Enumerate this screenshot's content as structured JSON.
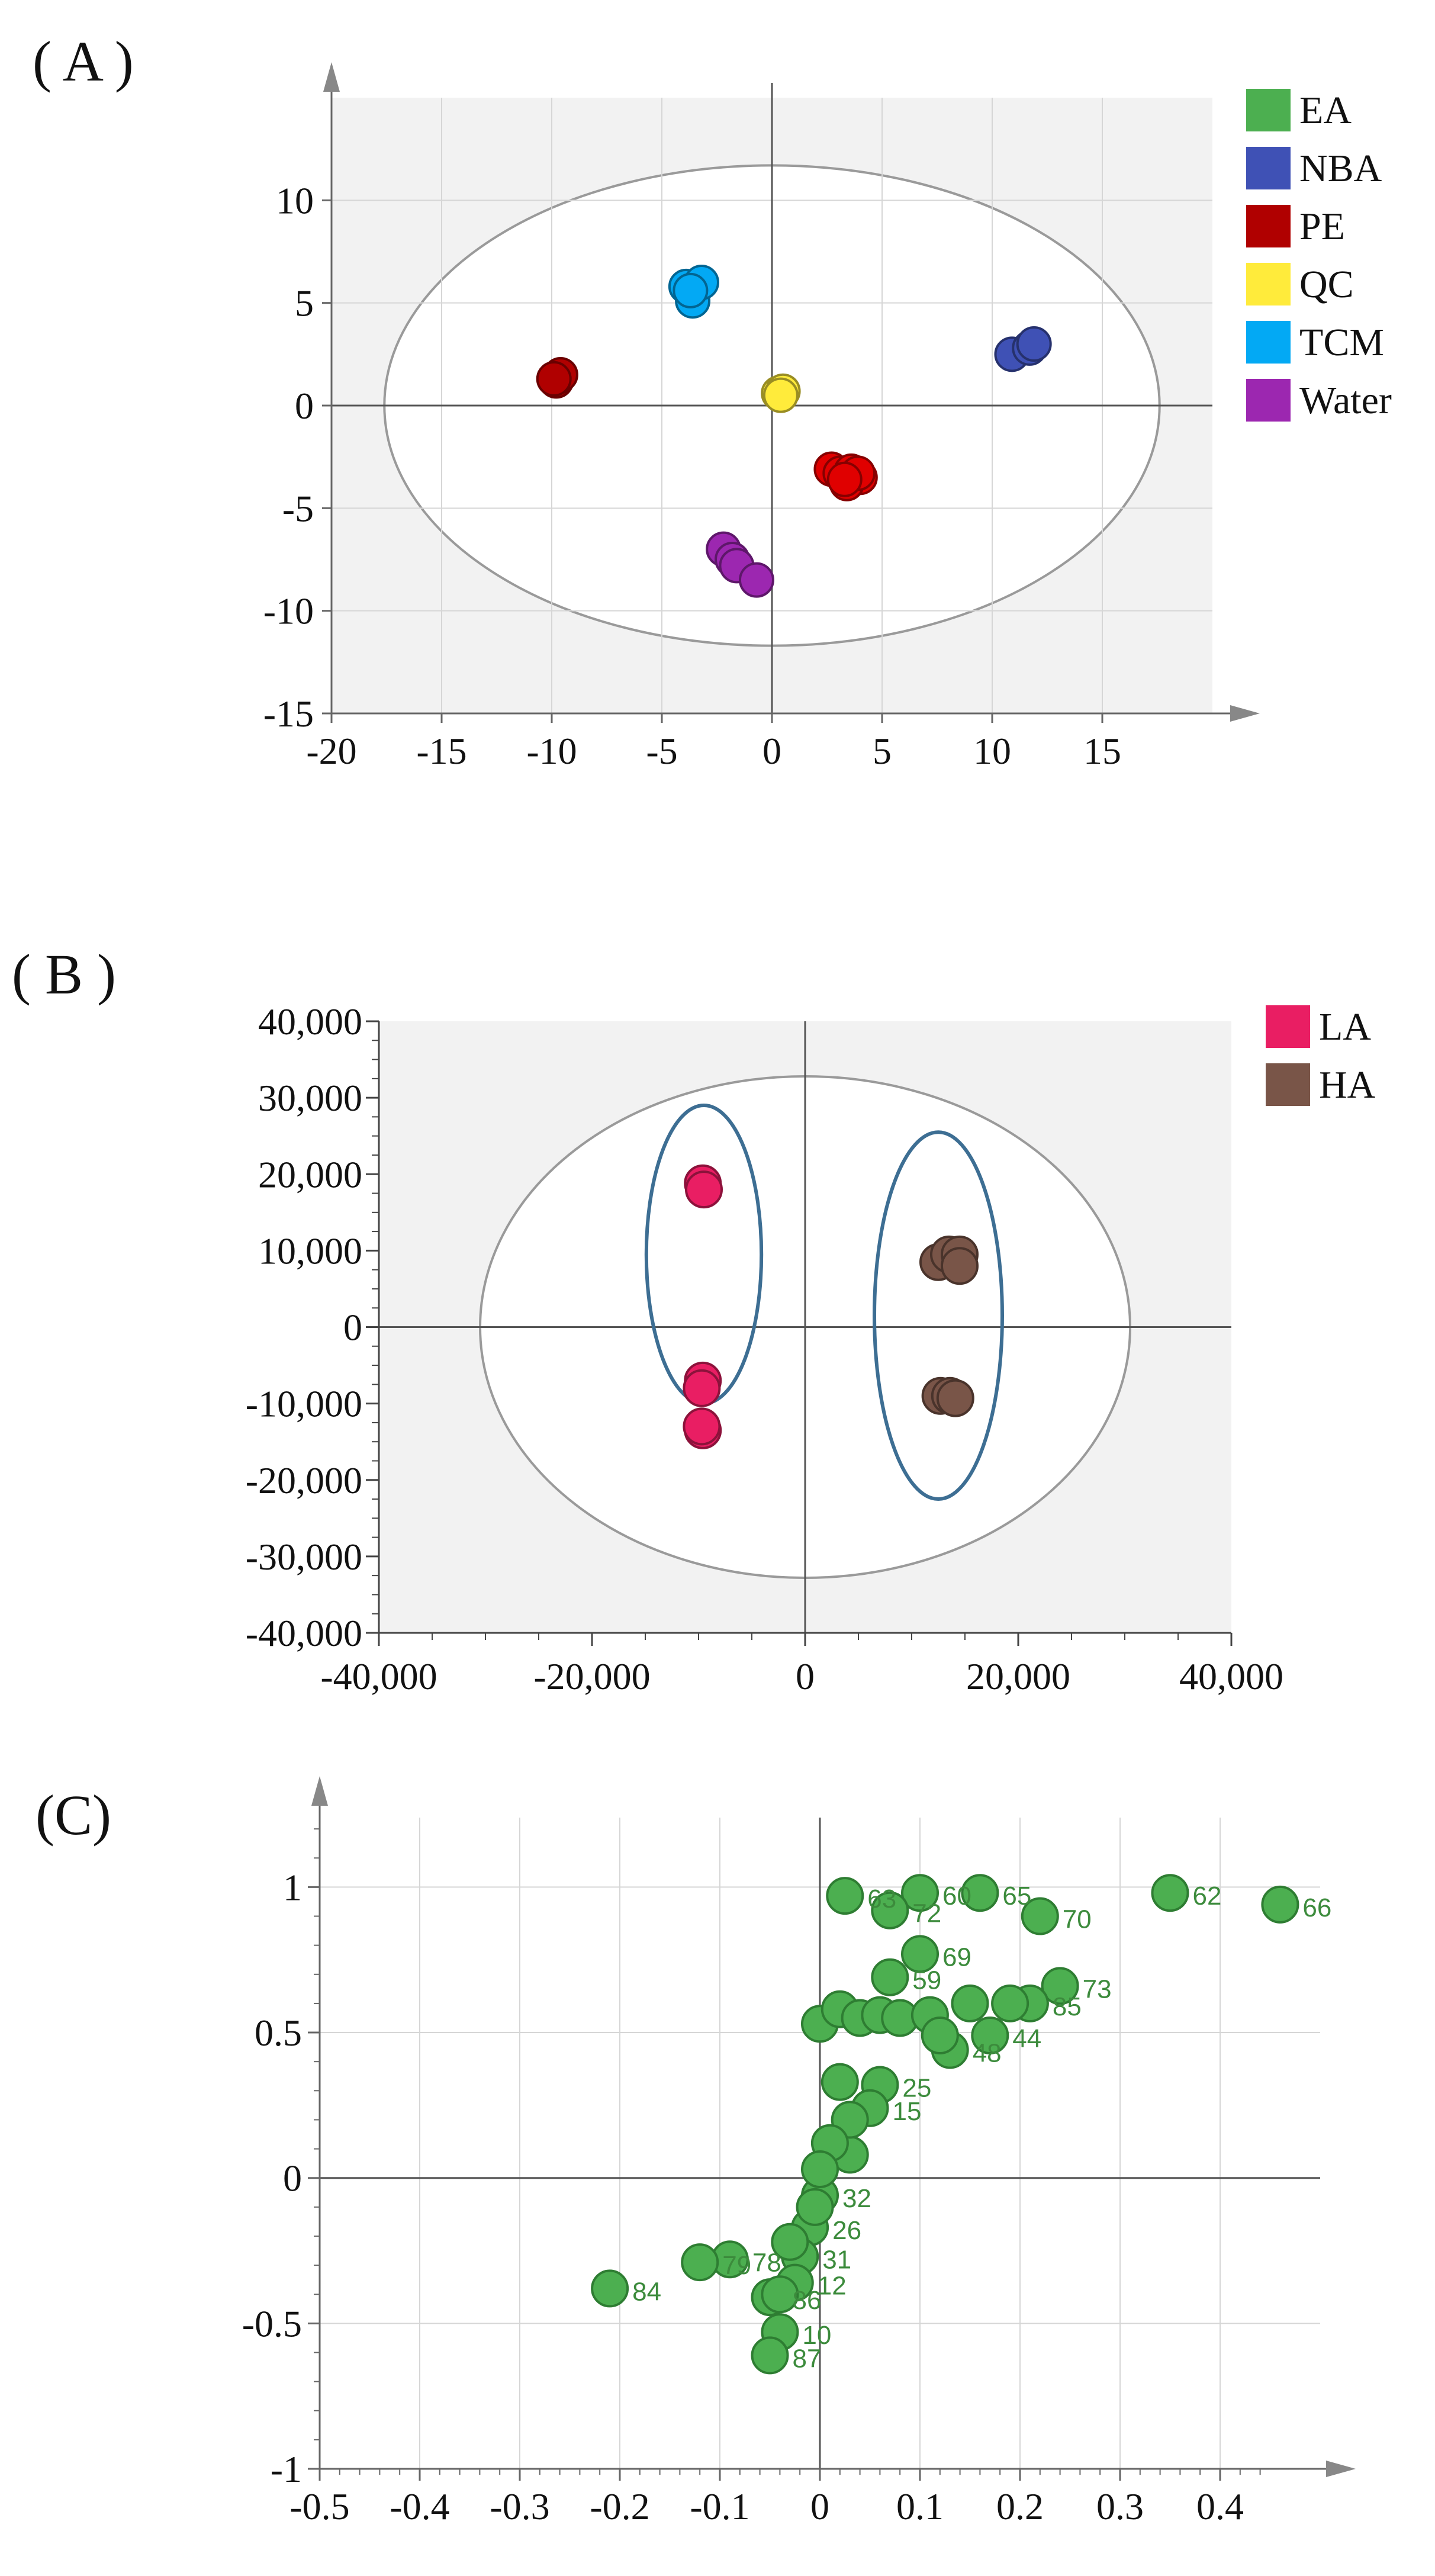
{
  "panels": {
    "a_label": "( A )",
    "b_label": "( B )",
    "c_label": "(C)"
  },
  "chart_data": [
    {
      "type": "scatter",
      "panel": "A",
      "title": "",
      "xlabel": "",
      "ylabel": "",
      "xlim": [
        -20,
        20
      ],
      "ylim": [
        -15,
        15
      ],
      "xticks": [
        "-20",
        "-15",
        "-10",
        "-5",
        "0",
        "5",
        "10",
        "15"
      ],
      "yticks": [
        "10",
        "5",
        "0",
        "-5",
        "-10",
        "-15"
      ],
      "grid": true,
      "legend_position": "right",
      "ellipse": {
        "cx": 0,
        "cy": 0,
        "rx": 17.6,
        "ry": 11.7
      },
      "series": [
        {
          "name": "EA",
          "color": "#4caf50",
          "points": []
        },
        {
          "name": "NBA",
          "color": "#3f51b5",
          "points": [
            [
              10.9,
              2.5
            ],
            [
              11.7,
              2.8
            ],
            [
              11.9,
              3.0
            ]
          ]
        },
        {
          "name": "PE",
          "color": "#b00000",
          "points": [
            [
              -9.8,
              1.2
            ],
            [
              -9.7,
              1.4
            ],
            [
              -9.6,
              1.5
            ],
            [
              -9.9,
              1.3
            ]
          ]
        },
        {
          "name": "QC",
          "color": "#ffeb3b",
          "points": [
            [
              0.3,
              0.6
            ],
            [
              0.5,
              0.7
            ],
            [
              0.4,
              0.5
            ]
          ]
        },
        {
          "name": "TCM",
          "color": "#03a9f4",
          "points": [
            [
              -3.9,
              5.8
            ],
            [
              -3.6,
              5.1
            ],
            [
              -3.2,
              6.0
            ],
            [
              -3.7,
              5.6
            ]
          ]
        },
        {
          "name": "Water",
          "color": "#9c27b0",
          "points": [
            [
              -2.2,
              -7.0
            ],
            [
              -1.8,
              -7.5
            ],
            [
              -1.6,
              -7.8
            ],
            [
              -0.7,
              -8.5
            ]
          ]
        },
        {
          "name": "",
          "color": "#e00000",
          "points": [
            [
              2.7,
              -3.1
            ],
            [
              3.1,
              -3.3
            ],
            [
              3.6,
              -3.2
            ],
            [
              4.0,
              -3.5
            ],
            [
              3.4,
              -3.8
            ],
            [
              3.9,
              -3.3
            ],
            [
              3.3,
              -3.6
            ]
          ]
        }
      ]
    },
    {
      "type": "scatter",
      "panel": "B",
      "title": "",
      "xlabel": "",
      "ylabel": "",
      "xlim": [
        -40000,
        40000
      ],
      "ylim": [
        -40000,
        40000
      ],
      "xticks": [
        "-40,000",
        "-20,000",
        "0",
        "20,000",
        "40,000"
      ],
      "yticks": [
        "40,000",
        "30,000",
        "20,000",
        "10,000",
        "0",
        "-10,000",
        "-20,000",
        "-30,000",
        "-40,000"
      ],
      "grid": false,
      "legend_position": "top-right",
      "ellipse": {
        "cx": 0,
        "cy": 0,
        "rx": 30500,
        "ry": 32800
      },
      "group_ellipses": [
        {
          "cx": -9500,
          "cy": 9500,
          "rx": 5400,
          "ry": 19500
        },
        {
          "cx": 12500,
          "cy": 1500,
          "rx": 6000,
          "ry": 24000
        }
      ],
      "series": [
        {
          "name": "LA",
          "color": "#e91e63",
          "points": [
            [
              -9600,
              18800
            ],
            [
              -9500,
              18000
            ],
            [
              -9600,
              -7000
            ],
            [
              -9700,
              -8000
            ],
            [
              -9600,
              -13500
            ],
            [
              -9700,
              -13000
            ]
          ]
        },
        {
          "name": "HA",
          "color": "#795548",
          "points": [
            [
              12500,
              8500
            ],
            [
              13500,
              9500
            ],
            [
              14500,
              9500
            ],
            [
              14500,
              8000
            ],
            [
              12700,
              -9000
            ],
            [
              13600,
              -9000
            ],
            [
              14100,
              -9300
            ]
          ]
        }
      ]
    },
    {
      "type": "scatter",
      "panel": "C",
      "title": "",
      "xlabel": "",
      "ylabel": "",
      "xlim": [
        -0.5,
        0.5
      ],
      "ylim": [
        -1,
        1.3
      ],
      "xticks": [
        "-0.5",
        "-0.4",
        "-0.3",
        "-0.2",
        "-0.1",
        "0",
        "0.1",
        "0.2",
        "0.3",
        "0.4"
      ],
      "yticks": [
        "1",
        "0.5",
        "0",
        "-0.5",
        "-1"
      ],
      "grid": true,
      "series": [
        {
          "name": "",
          "color": "#4caf50",
          "points": [
            {
              "x": 0.46,
              "y": 0.94,
              "label": "66"
            },
            {
              "x": 0.35,
              "y": 0.98,
              "label": "62"
            },
            {
              "x": 0.22,
              "y": 0.9,
              "label": "70"
            },
            {
              "x": 0.16,
              "y": 0.98,
              "label": "65"
            },
            {
              "x": 0.1,
              "y": 0.98,
              "label": "60"
            },
            {
              "x": 0.07,
              "y": 0.92,
              "label": "72"
            },
            {
              "x": 0.025,
              "y": 0.97,
              "label": "63"
            },
            {
              "x": 0.1,
              "y": 0.77,
              "label": "69"
            },
            {
              "x": 0.24,
              "y": 0.66,
              "label": "73"
            },
            {
              "x": 0.21,
              "y": 0.6,
              "label": "85"
            },
            {
              "x": 0.17,
              "y": 0.49,
              "label": "44"
            },
            {
              "x": 0.13,
              "y": 0.44,
              "label": "48"
            },
            {
              "x": 0.07,
              "y": 0.69,
              "label": "59"
            },
            {
              "x": 0.06,
              "y": 0.32,
              "label": "25"
            },
            {
              "x": 0.05,
              "y": 0.24,
              "label": "15"
            },
            {
              "x": 0.03,
              "y": 0.08,
              "label": ""
            },
            {
              "x": 0.0,
              "y": -0.06,
              "label": "32"
            },
            {
              "x": -0.01,
              "y": -0.17,
              "label": "26"
            },
            {
              "x": -0.02,
              "y": -0.27,
              "label": "31"
            },
            {
              "x": -0.025,
              "y": -0.36,
              "label": "12"
            },
            {
              "x": -0.05,
              "y": -0.41,
              "label": "86"
            },
            {
              "x": -0.04,
              "y": -0.53,
              "label": "10"
            },
            {
              "x": -0.05,
              "y": -0.61,
              "label": "87"
            },
            {
              "x": -0.09,
              "y": -0.28,
              "label": "78"
            },
            {
              "x": -0.12,
              "y": -0.29,
              "label": "79"
            },
            {
              "x": -0.21,
              "y": -0.38,
              "label": "84"
            },
            {
              "x": 0.0,
              "y": 0.53,
              "label": ""
            },
            {
              "x": 0.02,
              "y": 0.58,
              "label": ""
            },
            {
              "x": 0.04,
              "y": 0.55,
              "label": ""
            },
            {
              "x": 0.06,
              "y": 0.56,
              "label": ""
            },
            {
              "x": 0.08,
              "y": 0.55,
              "label": ""
            },
            {
              "x": 0.11,
              "y": 0.56,
              "label": ""
            },
            {
              "x": 0.15,
              "y": 0.6,
              "label": ""
            },
            {
              "x": 0.19,
              "y": 0.6,
              "label": ""
            },
            {
              "x": 0.12,
              "y": 0.49,
              "label": ""
            },
            {
              "x": 0.02,
              "y": 0.33,
              "label": ""
            },
            {
              "x": 0.03,
              "y": 0.2,
              "label": ""
            },
            {
              "x": 0.01,
              "y": 0.12,
              "label": ""
            },
            {
              "x": 0.0,
              "y": 0.03,
              "label": ""
            },
            {
              "x": -0.005,
              "y": -0.1,
              "label": ""
            },
            {
              "x": -0.03,
              "y": -0.22,
              "label": ""
            },
            {
              "x": -0.04,
              "y": -0.4,
              "label": ""
            }
          ]
        }
      ]
    }
  ]
}
